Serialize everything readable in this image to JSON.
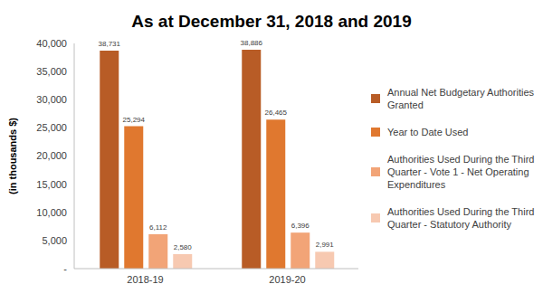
{
  "chart_data": {
    "type": "bar",
    "title": "As at December 31, 2018 and 2019",
    "y_label": "(in thousands $)",
    "categories": [
      "2018-19",
      "2019-20"
    ],
    "series": [
      {
        "name": "Annual Net Budgetary Authorities Granted",
        "color": "#B85C26",
        "values": [
          38731,
          38886
        ],
        "value_labels": [
          "38,731",
          "38,886"
        ]
      },
      {
        "name": "Year to Date Used",
        "color": "#E0782F",
        "values": [
          25294,
          26465
        ],
        "value_labels": [
          "25,294",
          "26,465"
        ]
      },
      {
        "name": "Authorities Used During the Third Quarter - Vote 1 - Net Operating Expenditures",
        "color": "#F2A477",
        "values": [
          6112,
          6396
        ],
        "value_labels": [
          "6,112",
          "6,396"
        ]
      },
      {
        "name": "Authorities Used During the Third Quarter  - Statutory Authority",
        "color": "#F7C9B1",
        "values": [
          2580,
          2991
        ],
        "value_labels": [
          "2,580",
          "2,991"
        ]
      }
    ],
    "ylim": [
      0,
      40000
    ],
    "yticks": [
      {
        "value": 0,
        "label": "-"
      },
      {
        "value": 5000,
        "label": "5,000"
      },
      {
        "value": 10000,
        "label": "10,000"
      },
      {
        "value": 15000,
        "label": "15,000"
      },
      {
        "value": 20000,
        "label": "20,000"
      },
      {
        "value": 25000,
        "label": "25,000"
      },
      {
        "value": 30000,
        "label": "30,000"
      },
      {
        "value": 35000,
        "label": "35,000"
      },
      {
        "value": 40000,
        "label": "40,000"
      }
    ],
    "grid": false,
    "legend": "right",
    "data_labels": true
  }
}
